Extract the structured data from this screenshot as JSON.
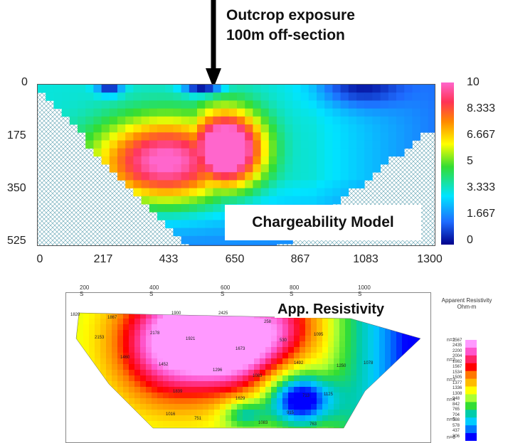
{
  "annotation": {
    "line1": "Outcrop exposure",
    "line2": "100m off-section"
  },
  "chart_data": [
    {
      "type": "heatmap",
      "title": "Chargeability Model",
      "x_ticks": [
        "0",
        "217",
        "433",
        "650",
        "867",
        "1083",
        "1300"
      ],
      "y_ticks": [
        "0",
        "175",
        "350",
        "525"
      ],
      "xlim": [
        0,
        1300
      ],
      "ylim": [
        0,
        525
      ],
      "colorbar": {
        "ticks": [
          "10",
          "8.333",
          "6.667",
          "5",
          "3.333",
          "1.667",
          "0"
        ],
        "range": [
          0,
          10
        ],
        "colors": [
          "#00008b",
          "#1e6bff",
          "#00e5ff",
          "#33dd33",
          "#ffff00",
          "#ff8800",
          "#ff3355",
          "#ff66cc"
        ]
      }
    },
    {
      "type": "heatmap",
      "title": "App. Resistivity",
      "x_ticks": [
        "200 S",
        "400 S",
        "600 S",
        "800 S",
        "1000 S"
      ],
      "depth_labels": [
        "n=1",
        "n=2",
        "n=3",
        "n=4",
        "n=5",
        "n=6"
      ],
      "value_labels": [
        "1820",
        "1867",
        "1900",
        "2425",
        "258",
        "2153",
        "2178",
        "1921",
        "1673",
        "530",
        "1095",
        "1460",
        "1452",
        "1296",
        "1083",
        "1492",
        "1250",
        "1078",
        "1839",
        "1629",
        "915",
        "713",
        "1125",
        "1016",
        "751",
        "1083",
        "763"
      ],
      "legend": {
        "title": "Apparent Resistivity",
        "unit": "Ohm-m",
        "ticks": [
          "2567",
          "2435",
          "2200",
          "2004",
          "1982",
          "1567",
          "1534",
          "1505",
          "1377",
          "1336",
          "1308",
          "948",
          "842",
          "765",
          "704",
          "598",
          "578",
          "437",
          "306"
        ],
        "colors": [
          "#ff99ff",
          "#ff55cc",
          "#ff2266",
          "#ff0000",
          "#ff7700",
          "#ffbb00",
          "#ffff00",
          "#aaff33",
          "#33dd33",
          "#00ccaa",
          "#00ccff",
          "#0077ff",
          "#0000ff"
        ]
      }
    }
  ]
}
